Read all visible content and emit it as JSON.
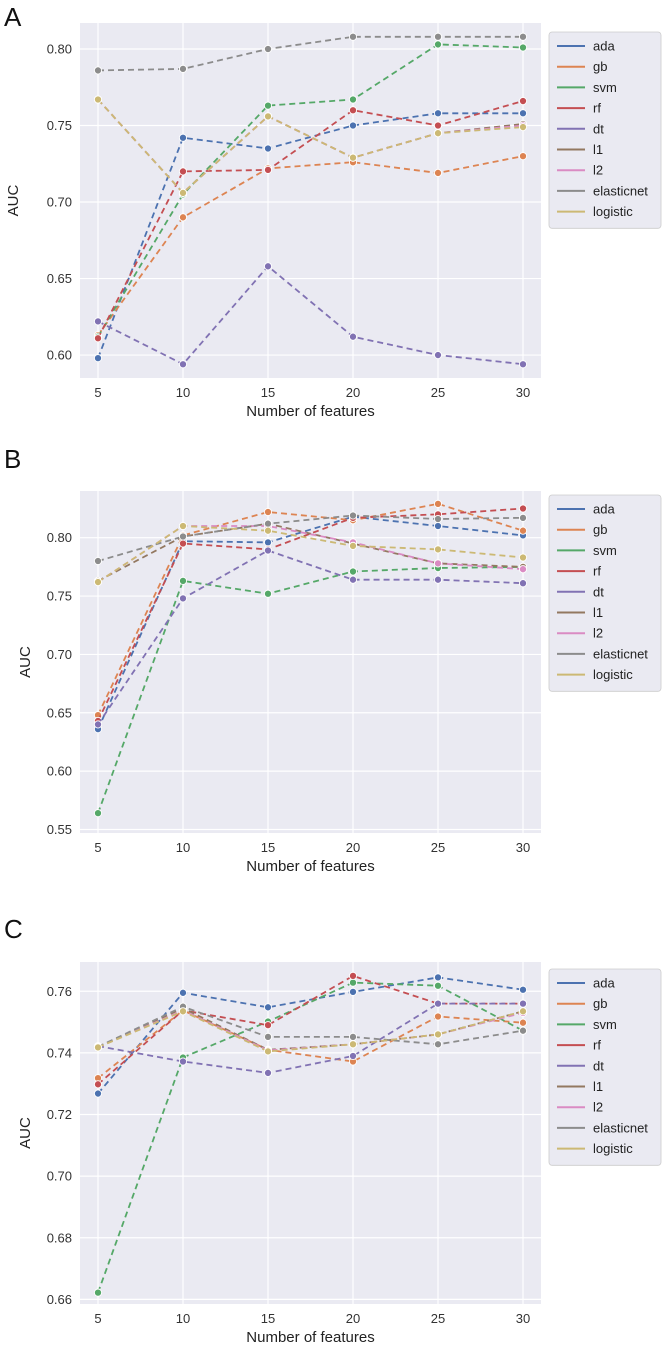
{
  "colors": {
    "ada": "#4c72b0",
    "gb": "#dd8452",
    "svm": "#55a868",
    "rf": "#c44e52",
    "dt": "#8172b3",
    "l1": "#937860",
    "l2": "#da8bc3",
    "elasticnet": "#8c8c8c",
    "logistic": "#ccb974"
  },
  "chart_data": [
    {
      "panel": "A",
      "type": "line",
      "xlabel": "Number of features",
      "ylabel": "AUC",
      "x": [
        5,
        10,
        15,
        20,
        25,
        30
      ],
      "xticks": [
        "5",
        "10",
        "15",
        "20",
        "25",
        "30"
      ],
      "ylim": [
        0.585,
        0.817
      ],
      "yticks": [
        0.6,
        0.65,
        0.7,
        0.75,
        0.8
      ],
      "yticklabels": [
        "0.60",
        "0.65",
        "0.70",
        "0.75",
        "0.80"
      ],
      "legend": "upper-right outside",
      "series": [
        {
          "name": "ada",
          "values": [
            0.598,
            0.742,
            0.735,
            0.75,
            0.758,
            0.758
          ]
        },
        {
          "name": "gb",
          "values": [
            0.613,
            0.69,
            0.722,
            0.726,
            0.719,
            0.73
          ]
        },
        {
          "name": "svm",
          "values": [
            0.612,
            0.705,
            0.763,
            0.767,
            0.803,
            0.801
          ]
        },
        {
          "name": "rf",
          "values": [
            0.611,
            0.72,
            0.721,
            0.76,
            0.75,
            0.766
          ]
        },
        {
          "name": "dt",
          "values": [
            0.622,
            0.594,
            0.658,
            0.612,
            0.6,
            0.594
          ]
        },
        {
          "name": "l1",
          "values": [
            0.767,
            0.706,
            0.756,
            0.729,
            0.745,
            0.751
          ]
        },
        {
          "name": "l2",
          "values": [
            0.767,
            0.706,
            0.756,
            0.729,
            0.745,
            0.75
          ]
        },
        {
          "name": "elasticnet",
          "values": [
            0.786,
            0.787,
            0.8,
            0.808,
            0.808,
            0.808
          ]
        },
        {
          "name": "logistic",
          "values": [
            0.767,
            0.706,
            0.756,
            0.729,
            0.745,
            0.749
          ]
        }
      ]
    },
    {
      "panel": "B",
      "type": "line",
      "xlabel": "Number of features",
      "ylabel": "AUC",
      "x": [
        5,
        10,
        15,
        20,
        25,
        30
      ],
      "xticks": [
        "5",
        "10",
        "15",
        "20",
        "25",
        "30"
      ],
      "ylim": [
        0.547,
        0.84
      ],
      "yticks": [
        0.55,
        0.6,
        0.65,
        0.7,
        0.75,
        0.8
      ],
      "yticklabels": [
        "0.55",
        "0.60",
        "0.65",
        "0.70",
        "0.75",
        "0.80"
      ],
      "legend": "upper-right outside",
      "series": [
        {
          "name": "ada",
          "values": [
            0.636,
            0.797,
            0.796,
            0.818,
            0.81,
            0.802
          ]
        },
        {
          "name": "gb",
          "values": [
            0.648,
            0.802,
            0.822,
            0.815,
            0.829,
            0.806
          ]
        },
        {
          "name": "svm",
          "values": [
            0.564,
            0.763,
            0.752,
            0.771,
            0.774,
            0.775
          ]
        },
        {
          "name": "rf",
          "values": [
            0.643,
            0.795,
            0.79,
            0.817,
            0.82,
            0.825
          ]
        },
        {
          "name": "dt",
          "values": [
            0.64,
            0.748,
            0.789,
            0.764,
            0.764,
            0.761
          ]
        },
        {
          "name": "l1",
          "values": [
            0.763,
            0.801,
            0.812,
            0.795,
            0.778,
            0.775
          ]
        },
        {
          "name": "l2",
          "values": [
            0.762,
            0.81,
            0.81,
            0.796,
            0.778,
            0.773
          ]
        },
        {
          "name": "elasticnet",
          "values": [
            0.78,
            0.801,
            0.812,
            0.819,
            0.816,
            0.817
          ]
        },
        {
          "name": "logistic",
          "values": [
            0.762,
            0.81,
            0.806,
            0.793,
            0.79,
            0.783
          ]
        }
      ]
    },
    {
      "panel": "C",
      "type": "line",
      "xlabel": "Number of features",
      "ylabel": "AUC",
      "x": [
        5,
        10,
        15,
        20,
        25,
        30
      ],
      "xticks": [
        "5",
        "10",
        "15",
        "20",
        "25",
        "30"
      ],
      "ylim": [
        0.6585,
        0.7695
      ],
      "yticks": [
        0.66,
        0.68,
        0.7,
        0.72,
        0.74,
        0.76
      ],
      "yticklabels": [
        "0.66",
        "0.68",
        "0.70",
        "0.72",
        "0.74",
        "0.76"
      ],
      "legend": "upper-right outside",
      "series": [
        {
          "name": "ada",
          "values": [
            0.7268,
            0.7595,
            0.7548,
            0.7598,
            0.7645,
            0.7605
          ]
        },
        {
          "name": "gb",
          "values": [
            0.7318,
            0.7538,
            0.741,
            0.7372,
            0.7518,
            0.7498
          ]
        },
        {
          "name": "svm",
          "values": [
            0.6622,
            0.7385,
            0.7502,
            0.7628,
            0.7618,
            0.7472
          ]
        },
        {
          "name": "rf",
          "values": [
            0.7298,
            0.7538,
            0.749,
            0.765,
            0.756,
            0.756
          ]
        },
        {
          "name": "dt",
          "values": [
            0.7422,
            0.7372,
            0.7335,
            0.739,
            0.756,
            0.756
          ]
        },
        {
          "name": "l1",
          "values": [
            0.7418,
            0.7545,
            0.741,
            0.7428,
            0.746,
            0.7535
          ]
        },
        {
          "name": "l2",
          "values": [
            0.7418,
            0.7538,
            0.7408,
            0.7428,
            0.746,
            0.753
          ]
        },
        {
          "name": "elasticnet",
          "values": [
            0.742,
            0.755,
            0.7452,
            0.7452,
            0.7428,
            0.7472
          ]
        },
        {
          "name": "logistic",
          "values": [
            0.7418,
            0.7535,
            0.7405,
            0.7428,
            0.746,
            0.7535
          ]
        }
      ]
    }
  ]
}
